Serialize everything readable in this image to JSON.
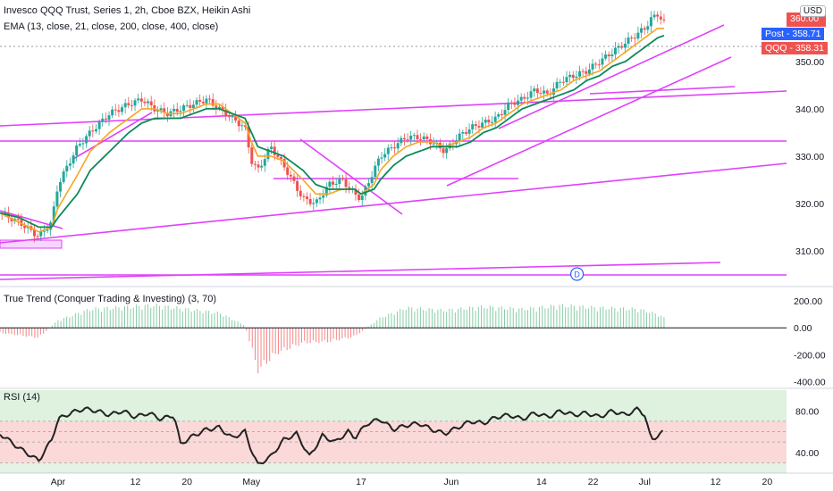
{
  "main": {
    "title": "Invesco QQQ Trust, Series 1, 2h, Cboe BZX, Heikin Ashi",
    "indicator": "EMA (13, close, 21, close, 200, close, 400, close)",
    "currency": "USD",
    "post_label": "Post",
    "post_price": "358.71",
    "symbol": "QQQ",
    "last_price": "358.31",
    "top_price": "360.00",
    "marker": "D"
  },
  "panes": {
    "true_trend_label": "True Trend (Conquer Trading & Investing) (3, 70)",
    "rsi_label": "RSI (14)"
  },
  "colors": {
    "up": "#26a69a",
    "down": "#ef5350",
    "trendline": "#e040fb",
    "ema_fast": "#f5a623",
    "ema_slow": "#0b8a5a",
    "rsi_line": "#222222",
    "post_badge": "#2962ff",
    "price_badge": "#ef5350"
  },
  "chart_data": [
    {
      "type": "candlestick",
      "name": "price",
      "y_ticks": [
        "350.00",
        "340.00",
        "330.00",
        "320.00",
        "310.00"
      ],
      "y_tick_values": [
        350,
        340,
        330,
        320,
        310
      ],
      "ylim": [
        303,
        363
      ],
      "x_labels": [
        "Apr",
        "12",
        "20",
        "May",
        "17",
        "Jun",
        "14",
        "22",
        "Jul",
        "12",
        "20"
      ],
      "x_label_days": [
        0,
        12,
        20,
        30,
        47,
        61,
        75,
        83,
        91,
        102,
        110
      ],
      "xlim": [
        -9,
        113
      ],
      "anchor_days": [
        -9,
        -6,
        -3,
        -1,
        0,
        3,
        5,
        8,
        11,
        13,
        15,
        17,
        19,
        21,
        23,
        25,
        27,
        29,
        30,
        31,
        33,
        35,
        38,
        40,
        42,
        44,
        46,
        47,
        49,
        50,
        52,
        54,
        56,
        58,
        60,
        62,
        64,
        66,
        68,
        70,
        72,
        74,
        76,
        78,
        80,
        82,
        84,
        86,
        88,
        90,
        91,
        92,
        93,
        94
      ],
      "anchor_close": [
        318,
        316,
        313,
        316,
        324,
        332,
        335,
        339,
        341,
        342,
        340,
        339,
        340,
        341,
        342,
        340,
        338,
        336,
        329,
        327,
        332,
        328,
        321,
        320,
        324,
        325,
        322,
        321,
        327,
        330,
        332,
        334,
        334,
        333,
        331,
        334,
        336,
        337,
        338,
        341,
        342,
        344,
        343,
        346,
        347,
        348,
        350,
        352,
        354,
        356,
        357,
        359,
        360,
        358.3
      ],
      "ema_fast": [
        318,
        316,
        314,
        315,
        319,
        326,
        331,
        335,
        338,
        340,
        340,
        339,
        339,
        340,
        341,
        341,
        339,
        337,
        333,
        330,
        330,
        329,
        325,
        322,
        322,
        323,
        323,
        322,
        324,
        327,
        330,
        332,
        333,
        333,
        332,
        333,
        334,
        336,
        337,
        339,
        341,
        342,
        343,
        344,
        346,
        347,
        348,
        350,
        352,
        354,
        355,
        356,
        357,
        357
      ],
      "ema_slow": [
        318,
        317,
        315,
        315,
        317,
        322,
        327,
        331,
        335,
        337,
        338,
        338,
        338,
        339,
        340,
        340,
        339,
        338,
        335,
        332,
        331,
        330,
        327,
        324,
        323,
        323,
        323,
        322,
        323,
        325,
        328,
        330,
        331,
        332,
        332,
        332,
        333,
        335,
        336,
        338,
        340,
        341,
        342,
        343,
        344,
        346,
        347,
        349,
        350,
        352,
        353,
        354,
        355,
        355.5
      ]
    },
    {
      "type": "bar",
      "name": "True Trend",
      "y_ticks": [
        "200.00",
        "0.00",
        "-200.00",
        "-400.00"
      ],
      "y_tick_values": [
        200,
        0,
        -200,
        -400
      ],
      "ylim": [
        -430,
        260
      ],
      "anchor_days": [
        -9,
        -3,
        0,
        5,
        15,
        25,
        29,
        31,
        34,
        38,
        42,
        46,
        50,
        54,
        60,
        66,
        72,
        78,
        84,
        90,
        93,
        94
      ],
      "anchor_values": [
        -40,
        -80,
        60,
        150,
        180,
        120,
        20,
        -340,
        -200,
        -120,
        -110,
        -70,
        80,
        160,
        140,
        170,
        150,
        180,
        160,
        150,
        110,
        80
      ]
    },
    {
      "type": "line",
      "name": "RSI",
      "y_ticks": [
        "80.00",
        "40.00"
      ],
      "y_tick_values": [
        80,
        40
      ],
      "ylim": [
        20,
        100
      ],
      "bands": [
        70,
        30
      ],
      "anchor_days": [
        -9,
        -6,
        -3,
        -1,
        0,
        2,
        4,
        6,
        8,
        10,
        12,
        14,
        16,
        18,
        19,
        21,
        23,
        25,
        27,
        29,
        30,
        31,
        33,
        35,
        37,
        39,
        41,
        43,
        45,
        46,
        48,
        50,
        52,
        54,
        56,
        58,
        60,
        62,
        64,
        66,
        68,
        70,
        72,
        74,
        76,
        78,
        80,
        82,
        84,
        86,
        88,
        90,
        91,
        92,
        93,
        94
      ],
      "anchor_values": [
        58,
        44,
        32,
        52,
        72,
        78,
        82,
        80,
        76,
        80,
        74,
        78,
        72,
        76,
        48,
        56,
        62,
        64,
        54,
        60,
        42,
        28,
        36,
        52,
        58,
        36,
        56,
        50,
        60,
        54,
        68,
        72,
        62,
        66,
        68,
        62,
        58,
        64,
        70,
        68,
        74,
        76,
        72,
        78,
        74,
        80,
        76,
        78,
        74,
        80,
        76,
        82,
        76,
        52,
        56,
        60
      ]
    }
  ]
}
